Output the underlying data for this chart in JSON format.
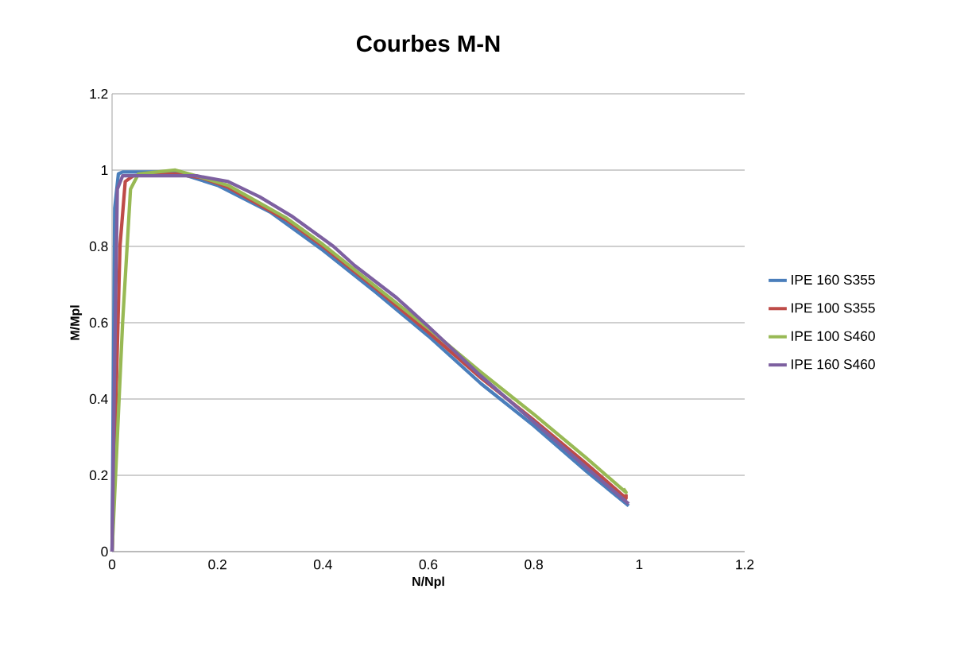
{
  "chart_data": {
    "type": "line",
    "title": "Courbes M-N",
    "xlabel": "N/Npl",
    "ylabel": "M/Mpl",
    "xlim": [
      0,
      1.2
    ],
    "ylim": [
      0,
      1.2
    ],
    "xticks": [
      0,
      0.2,
      0.4,
      0.6,
      0.8,
      1,
      1.2
    ],
    "yticks": [
      0,
      0.2,
      0.4,
      0.6,
      0.8,
      1,
      1.2
    ],
    "grid": "y",
    "legend": "right",
    "marker": "none",
    "line_style": "solid",
    "series": [
      {
        "name": "IPE 160 S355",
        "color": "#4a7ebb",
        "x": [
          0,
          0.005,
          0.012,
          0.02,
          0.12,
          0.2,
          0.3,
          0.4,
          0.5,
          0.6,
          0.7,
          0.8,
          0.9,
          0.98
        ],
        "values": [
          0,
          0.9,
          0.99,
          0.995,
          0.995,
          0.96,
          0.89,
          0.79,
          0.68,
          0.565,
          0.44,
          0.33,
          0.21,
          0.12
        ]
      },
      {
        "name": "IPE 100 S355",
        "color": "#be4b48",
        "x": [
          0,
          0.015,
          0.025,
          0.04,
          0.12,
          0.17,
          0.22,
          0.33,
          0.4,
          0.5,
          0.6,
          0.7,
          0.8,
          0.9,
          0.975,
          0.975
        ],
        "values": [
          0,
          0.8,
          0.97,
          0.985,
          0.99,
          0.98,
          0.955,
          0.87,
          0.8,
          0.69,
          0.575,
          0.455,
          0.345,
          0.23,
          0.14,
          0.15
        ]
      },
      {
        "name": "IPE 100 S460",
        "color": "#98b954",
        "x": [
          0,
          0.02,
          0.035,
          0.05,
          0.12,
          0.16,
          0.22,
          0.33,
          0.4,
          0.5,
          0.6,
          0.7,
          0.8,
          0.9,
          0.975,
          0.97
        ],
        "values": [
          0,
          0.6,
          0.95,
          0.99,
          1.0,
          0.985,
          0.96,
          0.875,
          0.805,
          0.695,
          0.585,
          0.47,
          0.36,
          0.245,
          0.155,
          0.165
        ]
      },
      {
        "name": "IPE 160 S460",
        "color": "#7d60a0",
        "x": [
          0,
          0.005,
          0.01,
          0.02,
          0.1,
          0.16,
          0.22,
          0.28,
          0.34,
          0.42,
          0.46,
          0.54,
          0.6,
          0.7,
          0.8,
          0.9,
          0.98
        ],
        "values": [
          0,
          0.5,
          0.95,
          0.985,
          0.985,
          0.985,
          0.97,
          0.93,
          0.88,
          0.8,
          0.75,
          0.665,
          0.59,
          0.46,
          0.34,
          0.22,
          0.125
        ]
      }
    ]
  }
}
